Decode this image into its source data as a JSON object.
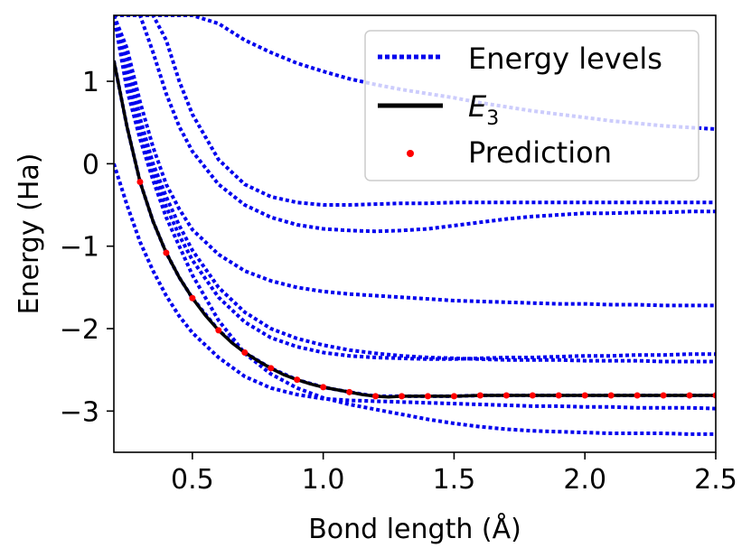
{
  "chart_data": {
    "type": "line",
    "title": "",
    "xlabel": "Bond length (Å)",
    "ylabel": "Energy (Ha)",
    "xlim": [
      0.2,
      2.5
    ],
    "ylim": [
      -3.5,
      1.8
    ],
    "xticks": [
      0.5,
      1.0,
      1.5,
      2.0,
      2.5
    ],
    "xtick_labels": [
      "0.5",
      "1.0",
      "1.5",
      "2.0",
      "2.5"
    ],
    "yticks": [
      1,
      0,
      -1,
      -2,
      -3
    ],
    "ytick_labels": [
      "1",
      "0",
      "−1",
      "−2",
      "−3"
    ],
    "legend": {
      "position": "top-right",
      "entries": [
        {
          "label": "Energy levels",
          "style": "dotted",
          "color": "#0000ee"
        },
        {
          "label": "E",
          "subscript": "3",
          "style": "solid",
          "color": "#000000"
        },
        {
          "label": "Prediction",
          "style": "point",
          "color": "#ff0000"
        }
      ]
    },
    "colors": {
      "levels": "#0000ee",
      "e3": "#000000",
      "prediction": "#ff0000"
    },
    "x": [
      0.2,
      0.25,
      0.3,
      0.35,
      0.4,
      0.45,
      0.5,
      0.6,
      0.7,
      0.8,
      0.9,
      1.0,
      1.1,
      1.2,
      1.3,
      1.4,
      1.5,
      1.6,
      1.7,
      1.8,
      1.9,
      2.0,
      2.1,
      2.2,
      2.3,
      2.4,
      2.5
    ],
    "series": [
      {
        "name": "Energy levels 1",
        "values": [
          1.8,
          0.9,
          0.3,
          -0.2,
          -0.65,
          -1.0,
          -1.35,
          -1.9,
          -2.3,
          -2.55,
          -2.72,
          -2.84,
          -2.92,
          -2.98,
          -3.04,
          -3.1,
          -3.15,
          -3.19,
          -3.22,
          -3.24,
          -3.25,
          -3.26,
          -3.27,
          -3.27,
          -3.27,
          -3.28,
          -3.28
        ]
      },
      {
        "name": "Energy levels 2",
        "values": [
          0.0,
          -0.5,
          -0.95,
          -1.3,
          -1.6,
          -1.85,
          -2.05,
          -2.35,
          -2.58,
          -2.72,
          -2.8,
          -2.85,
          -2.87,
          -2.88,
          -2.89,
          -2.9,
          -2.91,
          -2.92,
          -2.93,
          -2.94,
          -2.94,
          -2.95,
          -2.95,
          -2.96,
          -2.96,
          -2.96,
          -2.97
        ]
      },
      {
        "name": "Energy levels 3",
        "values": [
          1.25,
          0.45,
          -0.22,
          -0.7,
          -1.08,
          -1.38,
          -1.63,
          -2.02,
          -2.29,
          -2.48,
          -2.62,
          -2.71,
          -2.77,
          -2.82,
          -2.82,
          -2.82,
          -2.82,
          -2.81,
          -2.81,
          -2.81,
          -2.81,
          -2.81,
          -2.81,
          -2.81,
          -2.81,
          -2.81,
          -2.81
        ]
      },
      {
        "name": "Energy levels 4",
        "values": [
          1.8,
          1.3,
          0.55,
          0.0,
          -0.4,
          -0.75,
          -1.05,
          -1.5,
          -1.8,
          -2.0,
          -2.12,
          -2.2,
          -2.26,
          -2.3,
          -2.33,
          -2.35,
          -2.36,
          -2.37,
          -2.38,
          -2.38,
          -2.38,
          -2.39,
          -2.39,
          -2.39,
          -2.4,
          -2.4,
          -2.4
        ]
      },
      {
        "name": "Energy levels 5",
        "values": [
          1.8,
          1.1,
          0.4,
          -0.1,
          -0.52,
          -0.87,
          -1.17,
          -1.62,
          -1.92,
          -2.11,
          -2.22,
          -2.29,
          -2.33,
          -2.35,
          -2.36,
          -2.37,
          -2.37,
          -2.36,
          -2.35,
          -2.35,
          -2.34,
          -2.33,
          -2.33,
          -2.32,
          -2.32,
          -2.31,
          -2.31
        ]
      },
      {
        "name": "Energy levels 6",
        "values": [
          1.8,
          1.4,
          0.75,
          0.2,
          -0.25,
          -0.55,
          -0.8,
          -1.1,
          -1.3,
          -1.42,
          -1.5,
          -1.55,
          -1.58,
          -1.6,
          -1.62,
          -1.64,
          -1.66,
          -1.67,
          -1.68,
          -1.69,
          -1.7,
          -1.7,
          -1.71,
          -1.71,
          -1.72,
          -1.72,
          -1.72
        ]
      },
      {
        "name": "Energy levels 7",
        "values": [
          1.8,
          1.8,
          1.8,
          1.35,
          0.85,
          0.45,
          0.15,
          -0.25,
          -0.5,
          -0.65,
          -0.74,
          -0.79,
          -0.81,
          -0.82,
          -0.81,
          -0.79,
          -0.75,
          -0.71,
          -0.67,
          -0.64,
          -0.62,
          -0.6,
          -0.6,
          -0.59,
          -0.59,
          -0.58,
          -0.58
        ]
      },
      {
        "name": "Energy levels 8",
        "values": [
          1.8,
          1.8,
          1.8,
          1.8,
          1.5,
          1.0,
          0.6,
          0.05,
          -0.25,
          -0.4,
          -0.47,
          -0.5,
          -0.5,
          -0.49,
          -0.48,
          -0.48,
          -0.47,
          -0.47,
          -0.47,
          -0.47,
          -0.47,
          -0.47,
          -0.47,
          -0.47,
          -0.47,
          -0.47,
          -0.47
        ]
      },
      {
        "name": "Energy levels 9",
        "values": [
          1.8,
          1.8,
          1.8,
          1.8,
          1.8,
          1.8,
          1.8,
          1.7,
          1.5,
          1.35,
          1.22,
          1.12,
          1.03,
          0.96,
          0.9,
          0.85,
          0.8,
          0.74,
          0.69,
          0.64,
          0.6,
          0.56,
          0.52,
          0.49,
          0.46,
          0.44,
          0.42
        ]
      }
    ],
    "e3": {
      "label": "E3",
      "x": [
        0.2,
        0.25,
        0.3,
        0.35,
        0.4,
        0.45,
        0.5,
        0.55,
        0.6,
        0.65,
        0.7,
        0.75,
        0.8,
        0.85,
        0.9,
        0.95,
        1.0,
        1.05,
        1.1,
        1.15,
        1.2,
        1.25,
        1.3,
        1.4,
        1.5,
        1.6,
        1.7,
        1.8,
        1.9,
        2.0,
        2.1,
        2.2,
        2.3,
        2.4,
        2.5
      ],
      "values": [
        1.25,
        0.45,
        -0.22,
        -0.7,
        -1.08,
        -1.38,
        -1.63,
        -1.84,
        -2.02,
        -2.17,
        -2.29,
        -2.39,
        -2.48,
        -2.56,
        -2.62,
        -2.67,
        -2.71,
        -2.74,
        -2.77,
        -2.8,
        -2.82,
        -2.83,
        -2.82,
        -2.82,
        -2.82,
        -2.81,
        -2.81,
        -2.81,
        -2.81,
        -2.81,
        -2.81,
        -2.81,
        -2.81,
        -2.81,
        -2.81
      ]
    },
    "prediction": {
      "label": "Prediction",
      "x": [
        0.3,
        0.4,
        0.5,
        0.6,
        0.7,
        0.8,
        0.9,
        1.0,
        1.1,
        1.2,
        1.3,
        1.4,
        1.5,
        1.6,
        1.7,
        1.8,
        1.9,
        2.0,
        2.1,
        2.2,
        2.3,
        2.4,
        2.5
      ],
      "values": [
        -0.22,
        -1.08,
        -1.63,
        -2.02,
        -2.29,
        -2.48,
        -2.62,
        -2.71,
        -2.77,
        -2.82,
        -2.82,
        -2.82,
        -2.82,
        -2.81,
        -2.81,
        -2.81,
        -2.81,
        -2.81,
        -2.81,
        -2.81,
        -2.81,
        -2.81,
        -2.81
      ]
    }
  }
}
